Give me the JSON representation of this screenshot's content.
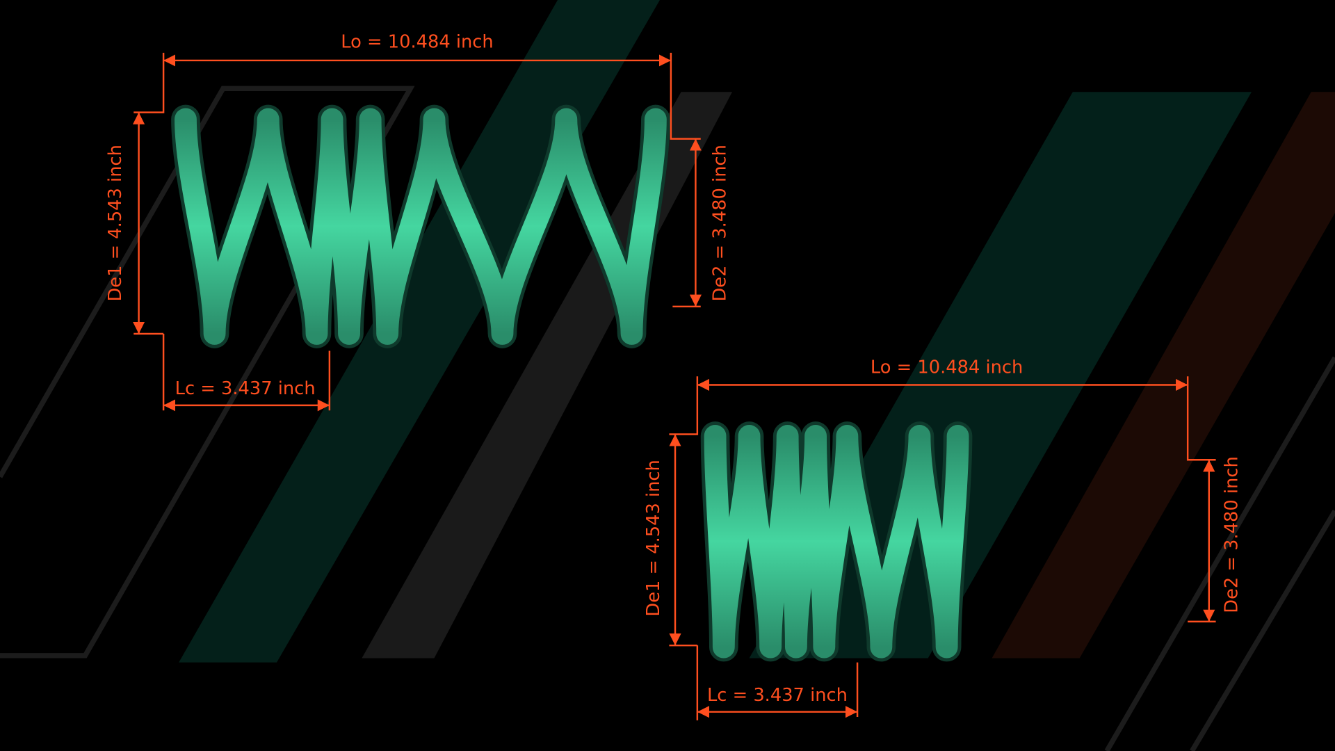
{
  "springs": [
    {
      "lo": "Lo = 10.484 inch",
      "lc": "Lc = 3.437 inch",
      "de1": "De1 = 4.543 inch",
      "de2": "De2 = 3.480 inch"
    },
    {
      "lo": "Lo = 10.484 inch",
      "lc": "Lc = 3.437 inch",
      "de1": "De1 = 4.543 inch",
      "de2": "De2 = 3.480 inch"
    }
  ]
}
